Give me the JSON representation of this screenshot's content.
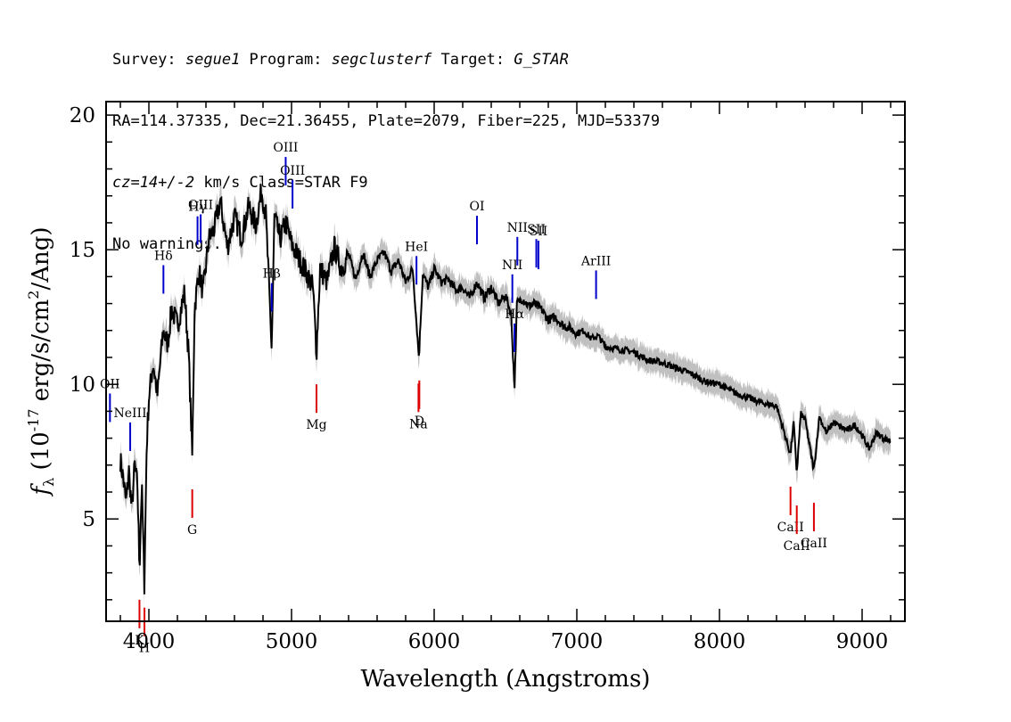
{
  "header": {
    "line1": [
      {
        "text": "Survey: ",
        "italic": false
      },
      {
        "text": "segue1",
        "italic": true
      },
      {
        "text": " Program: ",
        "italic": false
      },
      {
        "text": "segclusterf",
        "italic": true
      },
      {
        "text": " Target: ",
        "italic": false
      },
      {
        "text": "G_STAR",
        "italic": true
      }
    ],
    "line2": "RA=114.37335, Dec=21.36455, Plate=2079, Fiber=225, MJD=53379",
    "line3": [
      {
        "text": "cz=14+/-2",
        "italic": true
      },
      {
        "text": " km/s Class=STAR F9",
        "italic": false
      }
    ],
    "line4": "No warnings."
  },
  "chart_data": {
    "type": "line",
    "xlabel": "Wavelength (Angstroms)",
    "ylabel_main": "f",
    "ylabel_sub": "λ",
    "ylabel_rest": " (10",
    "ylabel_exp": "-17",
    "ylabel_tail": " erg/s/cm",
    "ylabel_exp2": "2",
    "ylabel_end": "/Ang)",
    "xlim": [
      3700,
      9300
    ],
    "ylim": [
      1.2,
      20.5
    ],
    "xticks": [
      4000,
      5000,
      6000,
      7000,
      8000,
      9000
    ],
    "yticks": [
      5,
      10,
      15,
      20
    ],
    "grid": false,
    "colors": {
      "flux": "#000000",
      "error_band": "#c0c0c0",
      "emission": "#0000cc",
      "absorption": "#dd0000"
    },
    "series": [
      {
        "x": [
          3800,
          3820,
          3840,
          3860,
          3880,
          3900,
          3920,
          3934,
          3950,
          3968,
          3985,
          4000,
          4030,
          4060,
          4100,
          4130,
          4160,
          4200,
          4250,
          4280,
          4304,
          4320,
          4350,
          4380,
          4420,
          4460,
          4500,
          4550,
          4600,
          4650,
          4700,
          4750,
          4790,
          4820,
          4861,
          4880,
          4920,
          4960,
          5000,
          5050,
          5100,
          5150,
          5175,
          5200,
          5250,
          5300,
          5350,
          5400,
          5450,
          5500,
          5550,
          5600,
          5650,
          5700,
          5750,
          5800,
          5850,
          5893,
          5920,
          5960,
          6000,
          6050,
          6100,
          6150,
          6200,
          6250,
          6300,
          6350,
          6400,
          6450,
          6500,
          6540,
          6563,
          6580,
          6620,
          6660,
          6700,
          6750,
          6800,
          6850,
          6900,
          6950,
          7000,
          7050,
          7100,
          7150,
          7200,
          7300,
          7400,
          7500,
          7600,
          7700,
          7800,
          7900,
          8000,
          8100,
          8200,
          8300,
          8400,
          8498,
          8520,
          8542,
          8570,
          8600,
          8662,
          8700,
          8750,
          8800,
          8850,
          8900,
          8950,
          9000,
          9050,
          9100,
          9150,
          9200
        ],
        "y": [
          7.2,
          6.5,
          5.6,
          6.8,
          5.3,
          7.0,
          6.2,
          3.2,
          6.3,
          2.6,
          7.8,
          9.5,
          10.8,
          9.6,
          12.0,
          11.5,
          12.8,
          12.2,
          13.4,
          11.0,
          7.3,
          12.8,
          14.2,
          13.4,
          15.4,
          15.8,
          16.8,
          15.1,
          16.2,
          15.5,
          16.6,
          15.9,
          17.2,
          16.3,
          11.3,
          16.2,
          15.4,
          16.0,
          15.2,
          14.7,
          14.2,
          13.6,
          11.2,
          14.3,
          13.8,
          15.1,
          14.3,
          14.8,
          13.9,
          14.9,
          14.0,
          14.6,
          14.9,
          14.2,
          14.6,
          13.8,
          14.3,
          11.0,
          14.1,
          13.6,
          14.3,
          13.8,
          13.9,
          13.5,
          13.6,
          13.2,
          13.8,
          13.2,
          13.6,
          13.0,
          13.3,
          12.6,
          9.8,
          13.0,
          13.2,
          12.9,
          13.0,
          12.8,
          12.4,
          12.5,
          12.2,
          12.1,
          11.9,
          12.0,
          11.7,
          11.8,
          11.4,
          11.3,
          11.2,
          10.9,
          10.8,
          10.6,
          10.4,
          10.1,
          10.0,
          9.7,
          9.5,
          9.3,
          9.2,
          7.4,
          8.6,
          6.7,
          8.9,
          8.7,
          6.8,
          8.8,
          8.2,
          8.6,
          8.4,
          8.3,
          8.5,
          8.1,
          7.6,
          8.2,
          8.0,
          7.9
        ]
      }
    ],
    "emission_lines": [
      {
        "label": "OII",
        "wave": 3727
      },
      {
        "label": "NeIII",
        "wave": 3869
      },
      {
        "label": "Hδ",
        "wave": 4102
      },
      {
        "label": "Hγ",
        "wave": 4341
      },
      {
        "label": "OIII",
        "wave": 4363
      },
      {
        "label": "Hβ",
        "wave": 4861
      },
      {
        "label": "OIII",
        "wave": 4959
      },
      {
        "label": "OIII",
        "wave": 5007
      },
      {
        "label": "HeI",
        "wave": 5876
      },
      {
        "label": "OI",
        "wave": 6300
      },
      {
        "label": "NII",
        "wave": 6548
      },
      {
        "label": "Hα",
        "wave": 6563
      },
      {
        "label": "NII",
        "wave": 6583
      },
      {
        "label": "SII",
        "wave": 6716
      },
      {
        "label": "SII",
        "wave": 6731
      },
      {
        "label": "ArIII",
        "wave": 7135
      }
    ],
    "absorption_lines": [
      {
        "label": "K",
        "wave": 3934
      },
      {
        "label": "H",
        "wave": 3969
      },
      {
        "label": "G",
        "wave": 4304
      },
      {
        "label": "Mg",
        "wave": 5175
      },
      {
        "label": "Na",
        "wave": 5890
      },
      {
        "label": "D",
        "wave": 5896
      },
      {
        "label": "CaII",
        "wave": 8498
      },
      {
        "label": "CaII",
        "wave": 8542
      },
      {
        "label": "CaII",
        "wave": 8662
      }
    ]
  }
}
